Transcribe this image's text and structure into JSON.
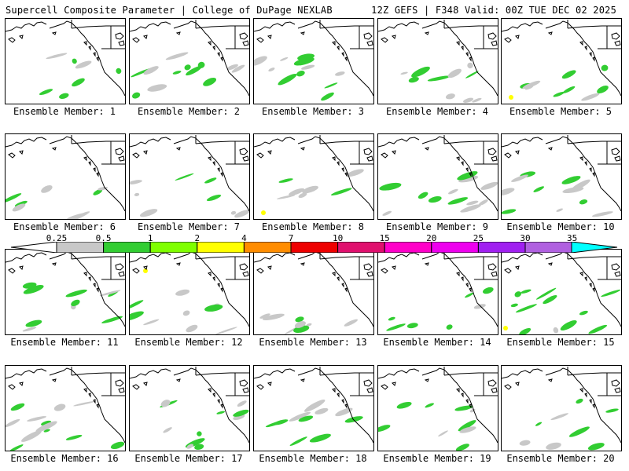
{
  "header": {
    "left": "Supercell Composite Parameter | College of DuPage NEXLAB",
    "right": "12Z GEFS | F348 Valid: 00Z TUE DEC 02 2025"
  },
  "member_prefix": "Ensemble Member: ",
  "members": [
    1,
    2,
    3,
    4,
    5,
    6,
    7,
    8,
    9,
    10,
    11,
    12,
    13,
    14,
    15,
    16,
    17,
    18,
    19,
    20
  ],
  "colorbar": {
    "ticks": [
      "0.25",
      "0.5",
      "1",
      "2",
      "4",
      "7",
      "10",
      "15",
      "20",
      "25",
      "30",
      "35"
    ],
    "colors": [
      "#c8c8c8",
      "#32cd32",
      "#7fff00",
      "#ffff00",
      "#ff8c00",
      "#ee0000",
      "#e0106e",
      "#ff00c8",
      "#ee00ee",
      "#a020f0",
      "#b060e0",
      "#00ffff"
    ]
  }
}
